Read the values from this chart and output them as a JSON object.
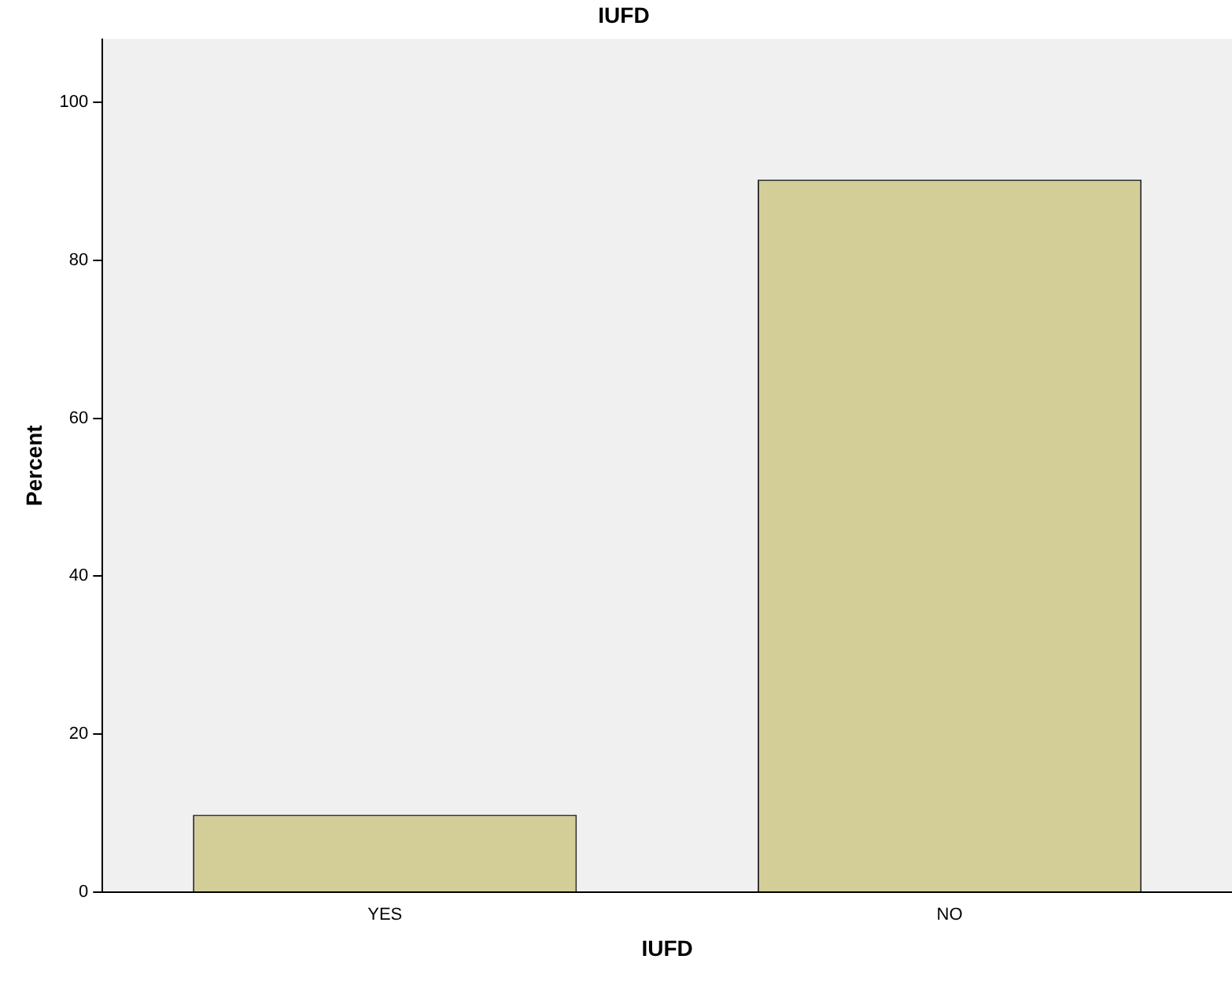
{
  "chart_data": {
    "type": "bar",
    "title": "IUFD",
    "xlabel": "IUFD",
    "ylabel": "Percent",
    "categories": [
      "YES",
      "NO"
    ],
    "values": [
      9.8,
      90.2
    ],
    "color": "#d3ce97",
    "ylim": [
      0,
      108
    ],
    "yticks": [
      0,
      20,
      40,
      60,
      80,
      100
    ],
    "grid": false,
    "legend": false
  }
}
